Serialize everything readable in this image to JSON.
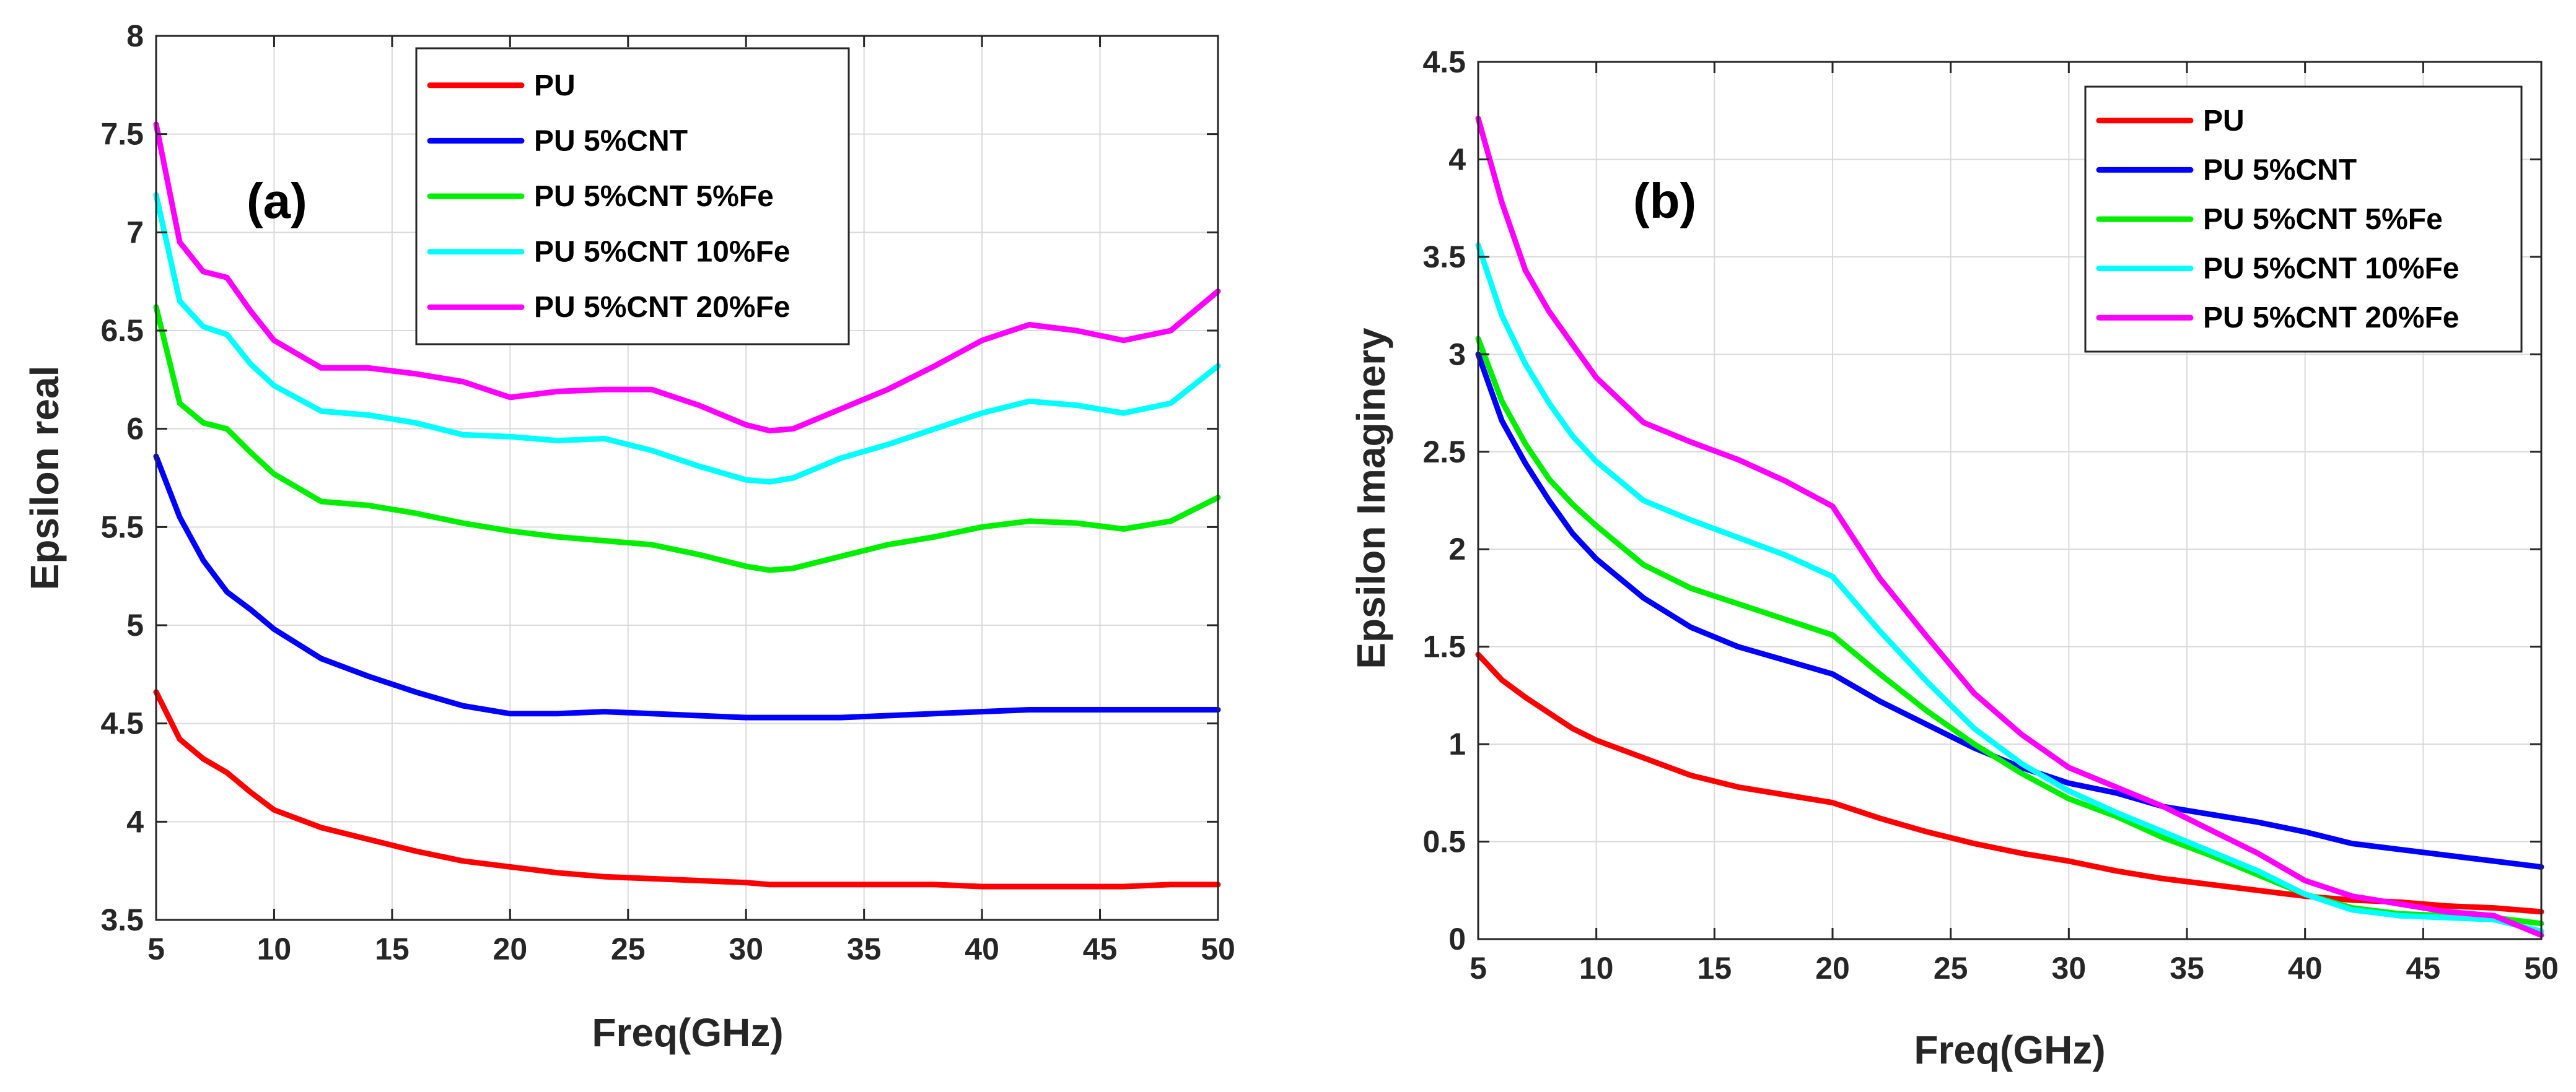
{
  "chart_data": [
    {
      "type": "line",
      "panel_label": "(a)",
      "xlabel": "Freq(GHz)",
      "ylabel": "Epsilon real",
      "xlim": [
        5,
        50
      ],
      "ylim": [
        3.5,
        8
      ],
      "xticks": [
        "5",
        "10",
        "15",
        "20",
        "25",
        "30",
        "35",
        "40",
        "45",
        "50"
      ],
      "yticks": [
        "3.5",
        "4",
        "4.5",
        "5",
        "5.5",
        "6",
        "6.5",
        "7",
        "7.5",
        "8"
      ],
      "grid": true,
      "legend_position": "top-center",
      "x": [
        5,
        6,
        7,
        8,
        9,
        10,
        12,
        14,
        16,
        18,
        20,
        22,
        24,
        26,
        28,
        30,
        31,
        32,
        34,
        36,
        38,
        40,
        42,
        44,
        46,
        48,
        50
      ],
      "series": [
        {
          "name": "PU",
          "color": "#ff0000",
          "values": [
            4.66,
            4.42,
            4.32,
            4.25,
            4.15,
            4.06,
            3.97,
            3.91,
            3.85,
            3.8,
            3.77,
            3.74,
            3.72,
            3.71,
            3.7,
            3.69,
            3.68,
            3.68,
            3.68,
            3.68,
            3.68,
            3.67,
            3.67,
            3.67,
            3.67,
            3.68,
            3.68
          ]
        },
        {
          "name": "PU 5%CNT",
          "color": "#0000ff",
          "values": [
            5.86,
            5.55,
            5.33,
            5.17,
            5.08,
            4.98,
            4.83,
            4.74,
            4.66,
            4.59,
            4.55,
            4.55,
            4.56,
            4.55,
            4.54,
            4.53,
            4.53,
            4.53,
            4.53,
            4.54,
            4.55,
            4.56,
            4.57,
            4.57,
            4.57,
            4.57,
            4.57
          ]
        },
        {
          "name": "PU 5%CNT 5%Fe",
          "color": "#00ee00",
          "values": [
            6.62,
            6.13,
            6.03,
            6.0,
            5.88,
            5.77,
            5.63,
            5.61,
            5.57,
            5.52,
            5.48,
            5.45,
            5.43,
            5.41,
            5.36,
            5.3,
            5.28,
            5.29,
            5.35,
            5.41,
            5.45,
            5.5,
            5.53,
            5.52,
            5.49,
            5.53,
            5.65
          ]
        },
        {
          "name": "PU 5%CNT 10%Fe",
          "color": "#00ffff",
          "values": [
            7.19,
            6.65,
            6.52,
            6.48,
            6.33,
            6.22,
            6.09,
            6.07,
            6.03,
            5.97,
            5.96,
            5.94,
            5.95,
            5.89,
            5.81,
            5.74,
            5.73,
            5.75,
            5.85,
            5.92,
            6.0,
            6.08,
            6.14,
            6.12,
            6.08,
            6.13,
            6.32
          ]
        },
        {
          "name": "PU 5%CNT 20%Fe",
          "color": "#ff00ff",
          "values": [
            7.55,
            6.95,
            6.8,
            6.77,
            6.6,
            6.45,
            6.31,
            6.31,
            6.28,
            6.24,
            6.16,
            6.19,
            6.2,
            6.2,
            6.12,
            6.02,
            5.99,
            6.0,
            6.1,
            6.2,
            6.32,
            6.45,
            6.53,
            6.5,
            6.45,
            6.5,
            6.7
          ]
        }
      ]
    },
    {
      "type": "line",
      "panel_label": "(b)",
      "xlabel": "Freq(GHz)",
      "ylabel": "Epsilon Imaginery",
      "xlim": [
        5,
        50
      ],
      "ylim": [
        0,
        4.5
      ],
      "xticks": [
        "5",
        "10",
        "15",
        "20",
        "25",
        "30",
        "35",
        "40",
        "45",
        "50"
      ],
      "yticks": [
        "0",
        "0.5",
        "1",
        "1.5",
        "2",
        "2.5",
        "3",
        "3.5",
        "4",
        "4.5"
      ],
      "grid": true,
      "legend_position": "top-right",
      "x": [
        5,
        6,
        7,
        8,
        9,
        10,
        12,
        14,
        16,
        18,
        20,
        22,
        24,
        26,
        28,
        30,
        32,
        34,
        36,
        38,
        40,
        42,
        44,
        46,
        48,
        50
      ],
      "series": [
        {
          "name": "PU",
          "color": "#ff0000",
          "values": [
            1.46,
            1.33,
            1.24,
            1.16,
            1.08,
            1.02,
            0.93,
            0.84,
            0.78,
            0.74,
            0.7,
            0.62,
            0.55,
            0.49,
            0.44,
            0.4,
            0.35,
            0.31,
            0.28,
            0.25,
            0.22,
            0.2,
            0.19,
            0.17,
            0.16,
            0.14
          ]
        },
        {
          "name": "PU 5%CNT",
          "color": "#0000ff",
          "values": [
            3.0,
            2.66,
            2.44,
            2.25,
            2.08,
            1.95,
            1.75,
            1.6,
            1.5,
            1.43,
            1.36,
            1.22,
            1.1,
            0.98,
            0.88,
            0.8,
            0.75,
            0.68,
            0.64,
            0.6,
            0.55,
            0.49,
            0.46,
            0.43,
            0.4,
            0.37
          ]
        },
        {
          "name": "PU 5%CNT 5%Fe",
          "color": "#00ee00",
          "values": [
            3.08,
            2.76,
            2.54,
            2.36,
            2.23,
            2.12,
            1.92,
            1.8,
            1.72,
            1.64,
            1.56,
            1.36,
            1.17,
            1.0,
            0.85,
            0.72,
            0.63,
            0.52,
            0.43,
            0.33,
            0.23,
            0.16,
            0.13,
            0.12,
            0.11,
            0.08
          ]
        },
        {
          "name": "PU 5%CNT 10%Fe",
          "color": "#00ffff",
          "values": [
            3.56,
            3.2,
            2.95,
            2.75,
            2.58,
            2.45,
            2.25,
            2.15,
            2.06,
            1.97,
            1.86,
            1.58,
            1.32,
            1.08,
            0.9,
            0.76,
            0.65,
            0.55,
            0.45,
            0.35,
            0.23,
            0.15,
            0.12,
            0.11,
            0.1,
            0.04
          ]
        },
        {
          "name": "PU 5%CNT 20%Fe",
          "color": "#ff00ff",
          "values": [
            4.21,
            3.78,
            3.43,
            3.22,
            3.05,
            2.88,
            2.65,
            2.55,
            2.46,
            2.35,
            2.22,
            1.85,
            1.55,
            1.26,
            1.05,
            0.88,
            0.78,
            0.68,
            0.56,
            0.44,
            0.3,
            0.22,
            0.18,
            0.14,
            0.12,
            0.02
          ]
        }
      ]
    }
  ]
}
